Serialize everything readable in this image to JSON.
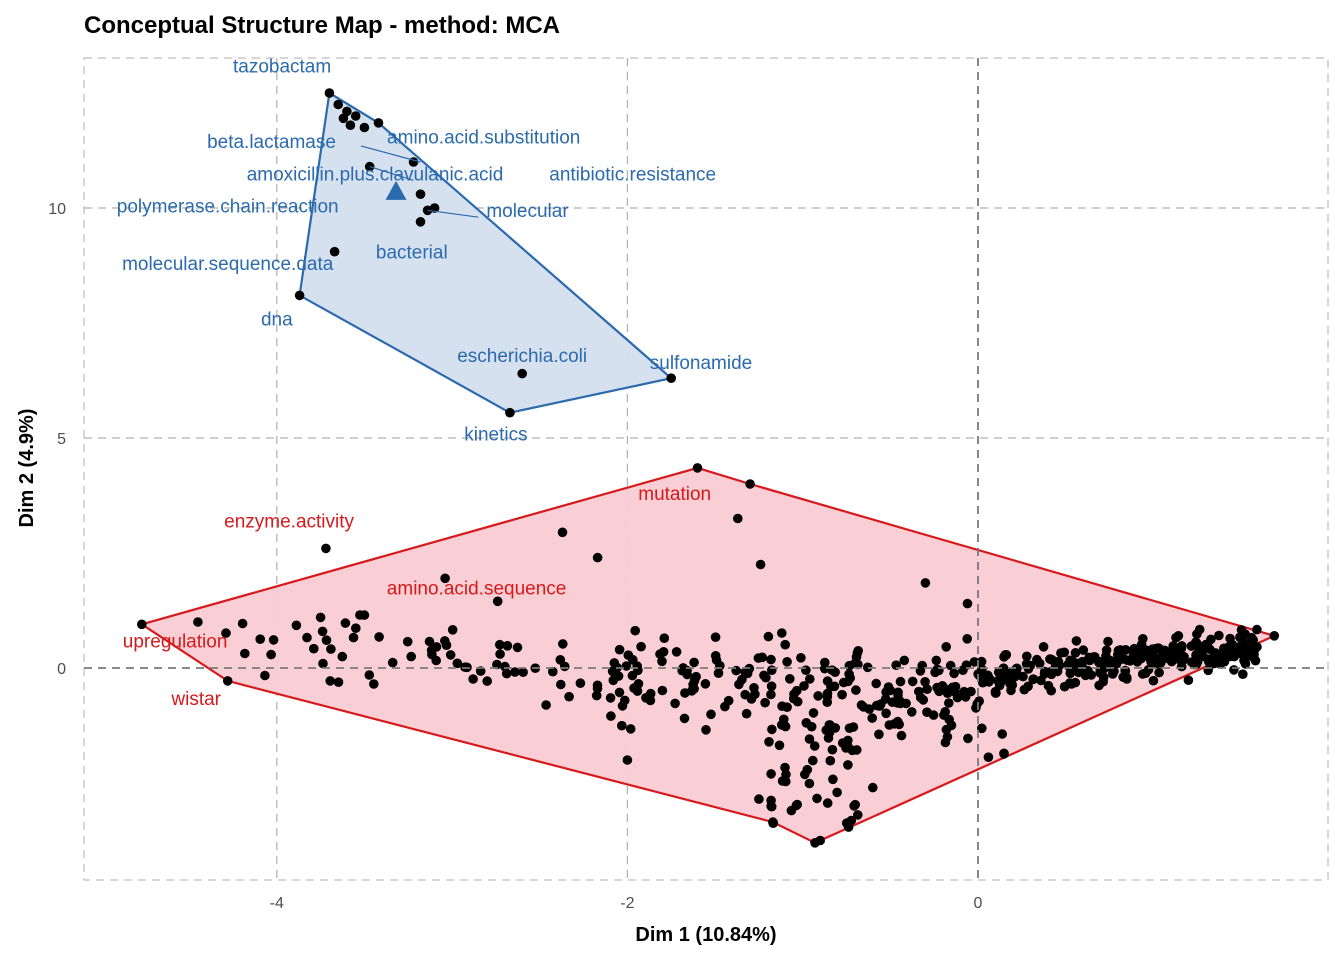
{
  "chart_data": {
    "type": "scatter",
    "title": "Conceptual Structure Map - method: MCA",
    "xlabel": "Dim 1 (10.84%)",
    "ylabel": "Dim 2 (4.9%)",
    "xlim": [
      -5.55,
      1.0
    ],
    "ylim": [
      -4.6,
      13.4
    ],
    "xticks": [
      -4,
      -2,
      0
    ],
    "yticks": [
      0,
      5,
      10
    ],
    "grid": true,
    "clusters": [
      {
        "color": "#2b6aad",
        "fill": "#d4dfee",
        "hull": [
          [
            -3.7,
            12.5
          ],
          [
            -3.42,
            11.85
          ],
          [
            -1.75,
            6.3
          ],
          [
            -2.67,
            5.55
          ],
          [
            -3.87,
            8.1
          ]
        ],
        "centroid": [
          -3.32,
          10.35
        ],
        "points": [
          [
            -3.7,
            12.5
          ],
          [
            -3.65,
            12.25
          ],
          [
            -3.6,
            12.1
          ],
          [
            -3.55,
            12.0
          ],
          [
            -3.62,
            11.95
          ],
          [
            -3.5,
            11.75
          ],
          [
            -3.42,
            11.85
          ],
          [
            -3.58,
            11.8
          ],
          [
            -3.22,
            11.0
          ],
          [
            -3.47,
            10.9
          ],
          [
            -3.18,
            10.3
          ],
          [
            -3.14,
            9.95
          ],
          [
            -3.1,
            10.0
          ],
          [
            -3.18,
            9.7
          ],
          [
            -3.67,
            9.05
          ],
          [
            -3.87,
            8.1
          ],
          [
            -2.67,
            5.55
          ],
          [
            -2.6,
            6.4
          ],
          [
            -1.75,
            6.3
          ]
        ],
        "labels": [
          {
            "text": "tazobactam",
            "x": -3.97,
            "y": 12.95
          },
          {
            "text": "beta.lactamase",
            "x": -4.03,
            "y": 11.3
          },
          {
            "text": "amino.acid.substitution",
            "x": -2.82,
            "y": 11.4
          },
          {
            "text": "amoxicillin.plus.clavulanic.acid",
            "x": -3.44,
            "y": 10.6
          },
          {
            "text": "antibiotic.resistance",
            "x": -1.97,
            "y": 10.6
          },
          {
            "text": "polymerase.chain.reaction",
            "x": -4.28,
            "y": 9.9
          },
          {
            "text": "molecular",
            "x": -2.57,
            "y": 9.8
          },
          {
            "text": "bacterial",
            "x": -3.23,
            "y": 8.9
          },
          {
            "text": "molecular.sequence.data",
            "x": -4.28,
            "y": 8.65
          },
          {
            "text": "dna",
            "x": -4.0,
            "y": 7.45
          },
          {
            "text": "escherichia.coli",
            "x": -2.6,
            "y": 6.65
          },
          {
            "text": "sulfonamide",
            "x": -1.58,
            "y": 6.5
          },
          {
            "text": "kinetics",
            "x": -2.75,
            "y": 4.95
          }
        ],
        "leaders": [
          [
            [
              -3.18,
              11.0
            ],
            [
              -3.52,
              11.35
            ]
          ],
          [
            [
              -3.47,
              10.9
            ],
            [
              -3.22,
              10.6
            ]
          ],
          [
            [
              -3.14,
              9.95
            ],
            [
              -2.85,
              9.8
            ]
          ]
        ]
      },
      {
        "color": "#d7191c",
        "fill": "#f9ccd3",
        "hull": [
          [
            -4.77,
            0.95
          ],
          [
            -1.6,
            4.35
          ],
          [
            -1.3,
            4.0
          ],
          [
            1.69,
            0.7
          ],
          [
            -0.9,
            -3.75
          ],
          [
            -0.93,
            -3.8
          ],
          [
            -1.17,
            -3.35
          ],
          [
            -4.28,
            -0.28
          ]
        ],
        "centroid": null,
        "points": [],
        "labels": [
          {
            "text": "upregulation",
            "x": -4.58,
            "y": 0.45
          },
          {
            "text": "wistar",
            "x": -4.46,
            "y": -0.8
          },
          {
            "text": "enzyme.activity",
            "x": -3.93,
            "y": 3.05
          },
          {
            "text": "mutation",
            "x": -1.73,
            "y": 3.65
          },
          {
            "text": "amino.acid.sequence",
            "x": -2.86,
            "y": 1.6
          }
        ],
        "leaders": []
      }
    ]
  }
}
